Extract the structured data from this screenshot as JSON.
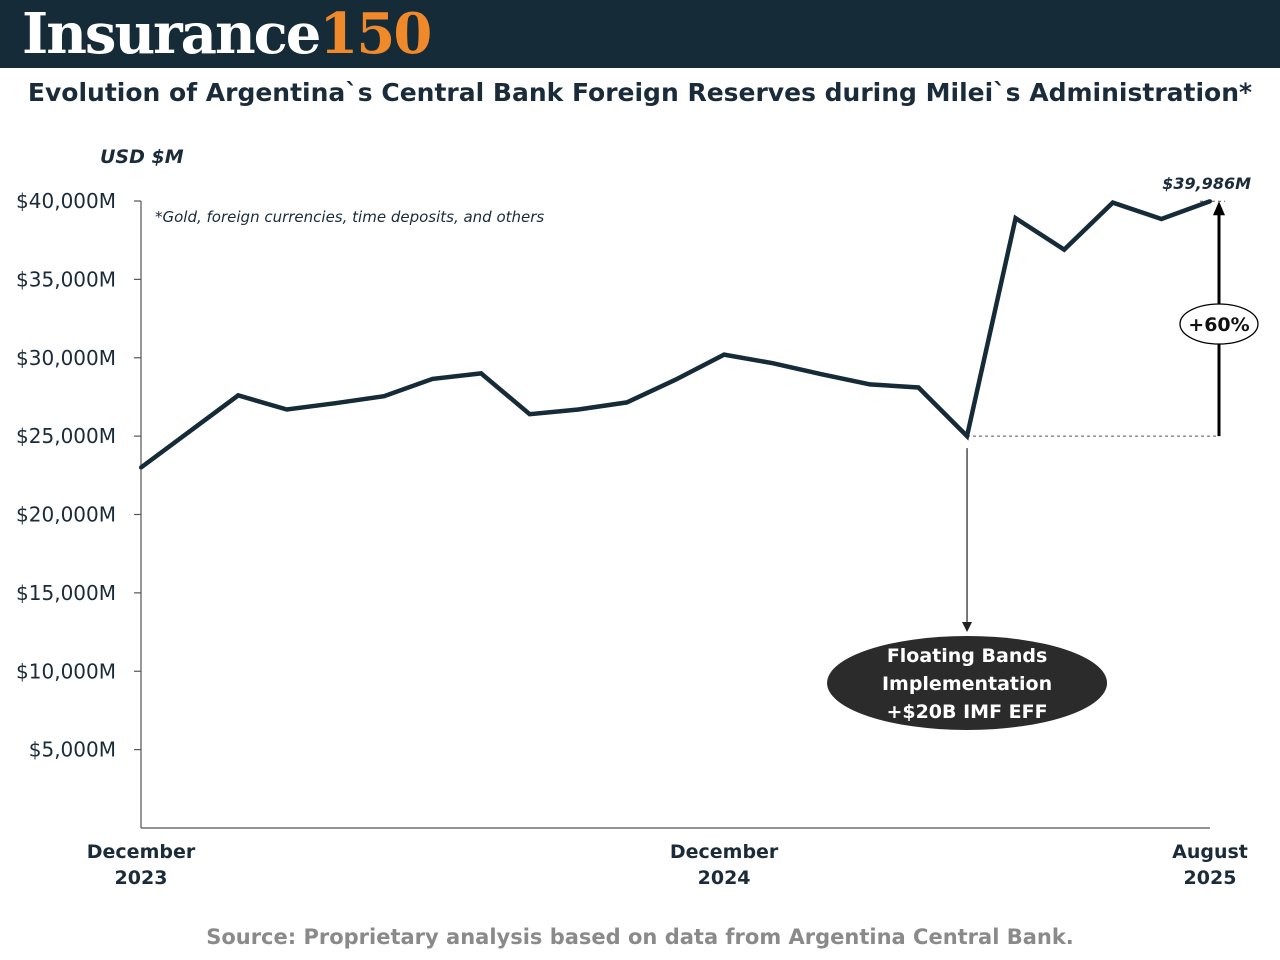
{
  "header": {
    "brand_name": "Insurance",
    "brand_number": "150"
  },
  "colors": {
    "header_bg": "#162b38",
    "brand_accent": "#f0892a",
    "line": "#162b38",
    "callout_fill": "#2b2b2b"
  },
  "title": "Evolution of Argentina`s Central Bank Foreign Reserves during Milei`s Administration*",
  "source": "Source: Proprietary analysis based on data from Argentina Central Bank.",
  "chart_data": {
    "type": "line",
    "ylabel": "USD $M",
    "footnote": "*Gold, foreign currencies, time deposits, and others",
    "ylim": [
      0,
      40000
    ],
    "yticks": [
      {
        "value": 5000,
        "label": "$5,000M"
      },
      {
        "value": 10000,
        "label": "$10,000M"
      },
      {
        "value": 15000,
        "label": "$15,000M"
      },
      {
        "value": 20000,
        "label": "$20,000M"
      },
      {
        "value": 25000,
        "label": "$25,000M"
      },
      {
        "value": 30000,
        "label": "$30,000M"
      },
      {
        "value": 35000,
        "label": "$35,000M"
      },
      {
        "value": 40000,
        "label": "$40,000M"
      }
    ],
    "xlim": [
      0,
      22
    ],
    "xticks": [
      {
        "x": 0,
        "line1": "December",
        "line2": "2023"
      },
      {
        "x": 12,
        "line1": "December",
        "line2": "2024"
      },
      {
        "x": 22,
        "line1": "August",
        "line2": "2025"
      }
    ],
    "grid": false,
    "series": [
      {
        "values": [
          23000,
          25300,
          27600,
          26700,
          27100,
          27550,
          28650,
          29000,
          26400,
          26700,
          27150,
          28600,
          30200,
          29650,
          28950,
          28300,
          28100,
          25000,
          38900,
          36900,
          39900,
          38850,
          39986
        ]
      }
    ],
    "annotations": {
      "final_value_label": "$39,986M",
      "change_label": "+60%",
      "change_from": 25000,
      "change_to": 39986,
      "event_x": 17,
      "event_lines": [
        "Floating Bands",
        "Implementation",
        "+$20B IMF EFF"
      ]
    }
  }
}
